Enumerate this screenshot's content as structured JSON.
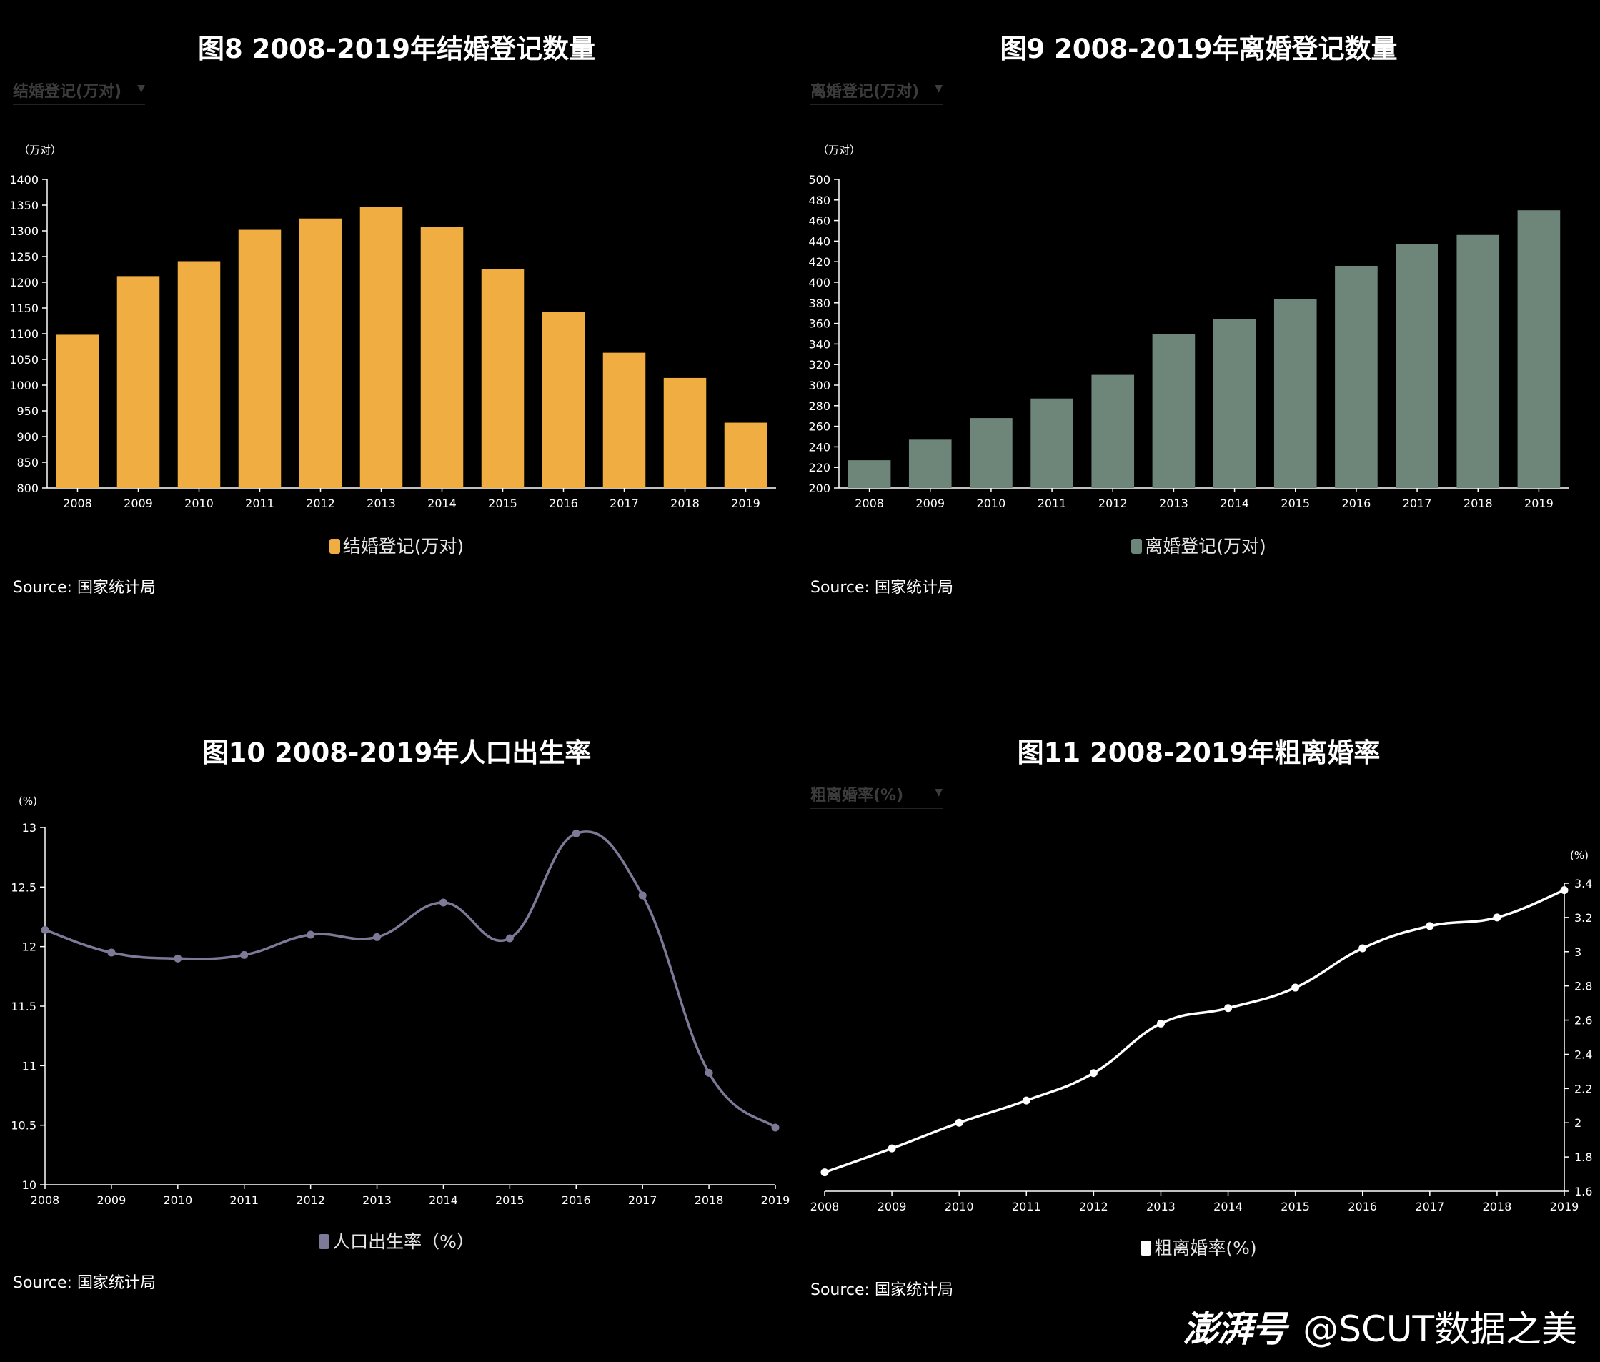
{
  "charts": [
    {
      "title": "图8  2008-2019年结婚登记数量",
      "dropdown": "结婚登记(万对)",
      "unit": "（万对）",
      "legend": "结婚登记(万对)",
      "source": "Source: 国家统计局",
      "color": "#f0ad41"
    },
    {
      "title": "图9  2008-2019年离婚登记数量",
      "dropdown": "离婚登记(万对)",
      "unit": "（万对）",
      "legend": "离婚登记(万对)",
      "source": "Source: 国家统计局",
      "color": "#6d8679"
    },
    {
      "title": "图10  2008-2019年人口出生率",
      "unit": "(%)",
      "legend": "人口出生率（%）",
      "source": "Source: 国家统计局",
      "color": "#7c7a96"
    },
    {
      "title": "图11   2008-2019年粗离婚率",
      "dropdown": "粗离婚率(%)",
      "unit": "(%)",
      "legend": "粗离婚率(%)",
      "source": "Source: 国家统计局",
      "color": "#ffffff"
    }
  ],
  "chart_data": [
    {
      "type": "bar",
      "title": "图8  2008-2019年结婚登记数量",
      "ylabel": "（万对）",
      "categories": [
        "2008",
        "2009",
        "2010",
        "2011",
        "2012",
        "2013",
        "2014",
        "2015",
        "2016",
        "2017",
        "2018",
        "2019"
      ],
      "series": [
        {
          "name": "结婚登记(万对)",
          "values": [
            1098,
            1212,
            1241,
            1302,
            1324,
            1347,
            1307,
            1225,
            1143,
            1063,
            1014,
            927
          ]
        }
      ],
      "ylim": [
        800,
        1400
      ],
      "yticks": [
        800,
        850,
        900,
        950,
        1000,
        1050,
        1100,
        1150,
        1200,
        1250,
        1300,
        1350,
        1400
      ],
      "grid": false,
      "legend_position": "bottom"
    },
    {
      "type": "bar",
      "title": "图9  2008-2019年离婚登记数量",
      "ylabel": "（万对）",
      "categories": [
        "2008",
        "2009",
        "2010",
        "2011",
        "2012",
        "2013",
        "2014",
        "2015",
        "2016",
        "2017",
        "2018",
        "2019"
      ],
      "series": [
        {
          "name": "离婚登记(万对)",
          "values": [
            227,
            247,
            268,
            287,
            310,
            350,
            364,
            384,
            416,
            437,
            446,
            470
          ]
        }
      ],
      "ylim": [
        200,
        500
      ],
      "yticks": [
        200,
        220,
        240,
        260,
        280,
        300,
        320,
        340,
        360,
        380,
        400,
        420,
        440,
        460,
        480,
        500
      ],
      "grid": false,
      "legend_position": "bottom"
    },
    {
      "type": "line",
      "title": "图10  2008-2019年人口出生率",
      "ylabel": "(%)",
      "categories": [
        "2008",
        "2009",
        "2010",
        "2011",
        "2012",
        "2013",
        "2014",
        "2015",
        "2016",
        "2017",
        "2018",
        "2019"
      ],
      "series": [
        {
          "name": "人口出生率（%）",
          "values": [
            12.14,
            11.95,
            11.9,
            11.93,
            12.1,
            12.08,
            12.37,
            12.07,
            12.95,
            12.43,
            10.94,
            10.48
          ]
        }
      ],
      "ylim": [
        10,
        13
      ],
      "yticks": [
        10,
        10.5,
        11,
        11.5,
        12,
        12.5,
        13
      ],
      "smooth": true,
      "grid": false,
      "legend_position": "bottom"
    },
    {
      "type": "line",
      "title": "图11   2008-2019年粗离婚率",
      "ylabel": "(%)",
      "categories": [
        "2008",
        "2009",
        "2010",
        "2011",
        "2012",
        "2013",
        "2014",
        "2015",
        "2016",
        "2017",
        "2018",
        "2019"
      ],
      "series": [
        {
          "name": "粗离婚率(%)",
          "values": [
            1.71,
            1.85,
            2.0,
            2.13,
            2.29,
            2.58,
            2.67,
            2.79,
            3.02,
            3.15,
            3.2,
            3.36
          ]
        }
      ],
      "ylim": [
        1.6,
        3.4
      ],
      "yticks": [
        1.6,
        1.8,
        2,
        2.2,
        2.4,
        2.6,
        2.8,
        3,
        3.2,
        3.4
      ],
      "yaxis_side": "right",
      "smooth": true,
      "grid": false,
      "legend_position": "bottom"
    }
  ],
  "watermark": {
    "logo": "澎湃号",
    "handle": "@SCUT数据之美"
  }
}
